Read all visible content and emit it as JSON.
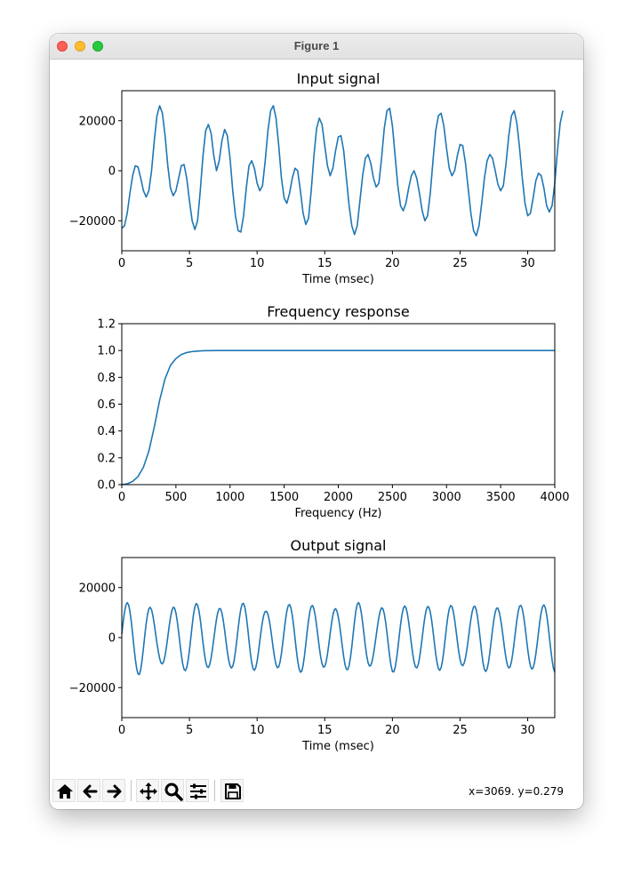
{
  "window": {
    "title": "Figure 1"
  },
  "colors": {
    "line": "#1f77b4",
    "axes": "#000000"
  },
  "toolbar": {
    "buttons": [
      {
        "name": "home-button",
        "icon": "home-icon"
      },
      {
        "name": "back-button",
        "icon": "arrow-left-icon"
      },
      {
        "name": "forward-button",
        "icon": "arrow-right-icon"
      },
      {
        "name": "pan-button",
        "icon": "move-icon"
      },
      {
        "name": "zoom-button",
        "icon": "zoom-icon"
      },
      {
        "name": "configure-subplots-button",
        "icon": "sliders-icon"
      },
      {
        "name": "save-button",
        "icon": "save-icon"
      }
    ],
    "coords_text": "x=3069. y=0.279"
  },
  "chart_data": [
    {
      "type": "line",
      "title": "Input signal",
      "xlabel": "Time (msec)",
      "ylabel": "",
      "xlim": [
        0,
        32
      ],
      "ylim": [
        -32000,
        32000
      ],
      "xticks": [
        0,
        5,
        10,
        15,
        20,
        25,
        30
      ],
      "yticks": [
        -20000,
        0,
        20000
      ],
      "grid": false,
      "sample_step": 0.2,
      "series": [
        {
          "values": [
            -23000,
            -22000,
            -17000,
            -9000,
            -2000,
            2000,
            1500,
            -3000,
            -8000,
            -10500,
            -8000,
            0,
            12000,
            22000,
            26000,
            23000,
            14000,
            2000,
            -7000,
            -10000,
            -8000,
            -3000,
            2000,
            2500,
            -3000,
            -12000,
            -20000,
            -23500,
            -20000,
            -8000,
            6000,
            16000,
            18500,
            15000,
            6000,
            0,
            4000,
            12000,
            16500,
            14000,
            5000,
            -8000,
            -18000,
            -24000,
            -24500,
            -18000,
            -7000,
            2000,
            4000,
            1000,
            -5000,
            -8000,
            -6000,
            4000,
            16000,
            24000,
            26000,
            21000,
            10000,
            -3000,
            -11000,
            -13000,
            -9000,
            -3000,
            1000,
            0,
            -8000,
            -17000,
            -21500,
            -19000,
            -8000,
            6000,
            17000,
            21000,
            18500,
            10000,
            2000,
            -2000,
            1000,
            8000,
            13500,
            14000,
            8000,
            -3000,
            -14000,
            -22000,
            -25500,
            -22000,
            -12000,
            -2000,
            5000,
            6500,
            3000,
            -3000,
            -6500,
            -5000,
            5000,
            17000,
            24000,
            25000,
            18000,
            6000,
            -6000,
            -14000,
            -16000,
            -13000,
            -7000,
            -2000,
            0,
            -3000,
            -9000,
            -16000,
            -20000,
            -18000,
            -9000,
            4000,
            16000,
            22000,
            23000,
            18000,
            9000,
            1000,
            -2000,
            0,
            6000,
            10500,
            10000,
            3000,
            -7000,
            -17000,
            -24000,
            -26000,
            -22000,
            -13000,
            -3000,
            4000,
            6500,
            5000,
            0,
            -5500,
            -8000,
            -6000,
            3000,
            14000,
            22000,
            24000,
            19000,
            9000,
            -3000,
            -13000,
            -18000,
            -17000,
            -11000,
            -4000,
            -1000,
            -2000,
            -7000,
            -14000,
            -16500,
            -14000,
            -5000,
            8000,
            19000,
            24000
          ]
        }
      ]
    },
    {
      "type": "line",
      "title": "Frequency response",
      "xlabel": "Frequency (Hz)",
      "ylabel": "",
      "xlim": [
        0,
        4000
      ],
      "ylim": [
        0,
        1.2
      ],
      "xticks": [
        0,
        500,
        1000,
        1500,
        2000,
        2500,
        3000,
        3500,
        4000
      ],
      "yticks": [
        0.0,
        0.2,
        0.4,
        0.6,
        0.8,
        1.0,
        1.2
      ],
      "grid": false,
      "series": [
        {
          "x": [
            0,
            50,
            100,
            150,
            200,
            250,
            300,
            350,
            400,
            450,
            500,
            550,
            600,
            650,
            700,
            750,
            800,
            900,
            1000,
            1200,
            1500,
            2000,
            2500,
            3000,
            3500,
            4000
          ],
          "values": [
            0.0,
            0.006,
            0.024,
            0.06,
            0.13,
            0.25,
            0.43,
            0.63,
            0.79,
            0.89,
            0.94,
            0.97,
            0.985,
            0.992,
            0.996,
            0.998,
            0.999,
            1.0,
            1.0,
            1.0,
            1.0,
            1.0,
            1.0,
            1.0,
            1.0,
            1.0
          ]
        }
      ]
    },
    {
      "type": "line",
      "title": "Output signal",
      "xlabel": "Time (msec)",
      "ylabel": "",
      "xlim": [
        0,
        32
      ],
      "ylim": [
        -32000,
        32000
      ],
      "xticks": [
        0,
        5,
        10,
        15,
        20,
        25,
        30
      ],
      "yticks": [
        -20000,
        0,
        20000
      ],
      "grid": false,
      "sample_step": 0.1,
      "series": [
        {
          "x0": 0,
          "period": 1.71,
          "phase": 0.1,
          "amplitude_envelope": [
            13500,
            15000,
            10000,
            12500,
            14000,
            11500,
            12000,
            14500,
            10500,
            13000,
            14000,
            12000,
            11500,
            14500,
            10500,
            14000,
            12000,
            12500,
            13500,
            11000,
            14000,
            11500,
            13000,
            12500,
            14000
          ]
        }
      ]
    }
  ]
}
